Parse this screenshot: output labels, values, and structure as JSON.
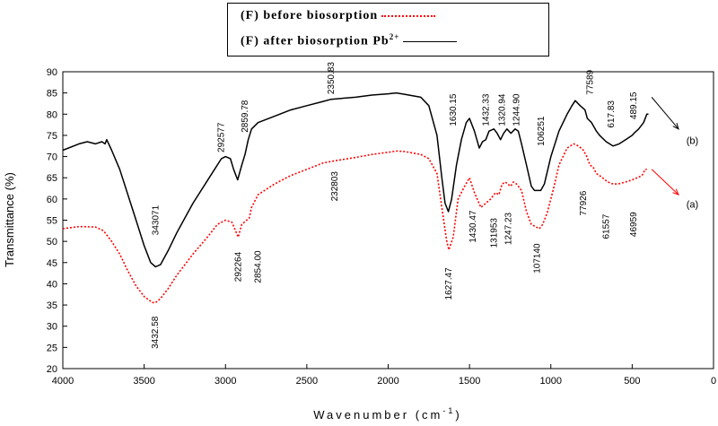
{
  "chart_data": {
    "type": "line",
    "xlabel": "Wavenumber (cm",
    "xlabel_sup": "-1",
    "xlabel_close": ")",
    "ylabel": "Transmittance (%)",
    "xlim": [
      4000,
      0
    ],
    "ylim": [
      20,
      90
    ],
    "x_ticks": [
      "4000",
      "3500",
      "3000",
      "2500",
      "2000",
      "1500",
      "1000",
      "500",
      "0"
    ],
    "y_ticks": [
      "20",
      "25",
      "30",
      "35",
      "40",
      "45",
      "50",
      "55",
      "60",
      "65",
      "70",
      "75",
      "80",
      "85",
      "90"
    ],
    "legend": {
      "placement": "top",
      "entries": [
        {
          "label": "(F) before biosorption",
          "series": "a"
        },
        {
          "label": "(F) after biosorption Pb",
          "sup": "2+",
          "series": "b"
        }
      ]
    },
    "series": [
      {
        "id": "a",
        "label": "(a)",
        "color": "#ff0000",
        "style": "dotted",
        "points": [
          [
            4000,
            53
          ],
          [
            3900,
            53.5
          ],
          [
            3800,
            53.4
          ],
          [
            3750,
            52.5
          ],
          [
            3700,
            50
          ],
          [
            3650,
            47
          ],
          [
            3600,
            43
          ],
          [
            3550,
            39.5
          ],
          [
            3500,
            37
          ],
          [
            3450,
            35.6
          ],
          [
            3432,
            35.5
          ],
          [
            3400,
            36.5
          ],
          [
            3350,
            39
          ],
          [
            3300,
            42
          ],
          [
            3200,
            47
          ],
          [
            3100,
            51.5
          ],
          [
            3050,
            54
          ],
          [
            3000,
            55
          ],
          [
            2960,
            54.5
          ],
          [
            2922,
            51
          ],
          [
            2900,
            54
          ],
          [
            2870,
            55
          ],
          [
            2854,
            55.5
          ],
          [
            2840,
            58
          ],
          [
            2800,
            61
          ],
          [
            2700,
            63.5
          ],
          [
            2600,
            65.5
          ],
          [
            2500,
            67
          ],
          [
            2400,
            68.5
          ],
          [
            2328,
            69
          ],
          [
            2200,
            69.8
          ],
          [
            2100,
            70.5
          ],
          [
            2000,
            71
          ],
          [
            1950,
            71.3
          ],
          [
            1900,
            71.2
          ],
          [
            1800,
            70.5
          ],
          [
            1750,
            69.5
          ],
          [
            1700,
            66
          ],
          [
            1670,
            58
          ],
          [
            1640,
            50
          ],
          [
            1627,
            48
          ],
          [
            1600,
            51
          ],
          [
            1570,
            60
          ],
          [
            1530,
            63
          ],
          [
            1500,
            65
          ],
          [
            1470,
            61.5
          ],
          [
            1430,
            58
          ],
          [
            1400,
            59
          ],
          [
            1370,
            60
          ],
          [
            1340,
            61.5
          ],
          [
            1319,
            61
          ],
          [
            1300,
            63.5
          ],
          [
            1280,
            64
          ],
          [
            1247,
            63
          ],
          [
            1230,
            64
          ],
          [
            1210,
            63.5
          ],
          [
            1180,
            62
          ],
          [
            1150,
            57
          ],
          [
            1120,
            54
          ],
          [
            1071,
            53
          ],
          [
            1050,
            54
          ],
          [
            1020,
            57
          ],
          [
            980,
            63
          ],
          [
            950,
            68
          ],
          [
            900,
            72
          ],
          [
            860,
            73
          ],
          [
            830,
            72.5
          ],
          [
            800,
            71.5
          ],
          [
            779,
            70
          ],
          [
            760,
            68
          ],
          [
            740,
            67.5
          ],
          [
            720,
            66
          ],
          [
            700,
            65.5
          ],
          [
            650,
            64
          ],
          [
            615,
            63.5
          ],
          [
            580,
            63.6
          ],
          [
            540,
            64
          ],
          [
            500,
            64.5
          ],
          [
            469,
            65
          ],
          [
            440,
            65.5
          ],
          [
            420,
            67
          ],
          [
            410,
            67
          ]
        ]
      },
      {
        "id": "b",
        "label": "(b)",
        "color": "#000000",
        "style": "solid",
        "points": [
          [
            4000,
            71.5
          ],
          [
            3900,
            73
          ],
          [
            3850,
            73.5
          ],
          [
            3800,
            73
          ],
          [
            3760,
            73.5
          ],
          [
            3740,
            73
          ],
          [
            3730,
            74
          ],
          [
            3700,
            71.5
          ],
          [
            3650,
            67
          ],
          [
            3600,
            61
          ],
          [
            3550,
            55
          ],
          [
            3500,
            49
          ],
          [
            3460,
            45
          ],
          [
            3430,
            44
          ],
          [
            3400,
            44.5
          ],
          [
            3350,
            48
          ],
          [
            3300,
            52
          ],
          [
            3200,
            59
          ],
          [
            3100,
            65
          ],
          [
            3025,
            69.5
          ],
          [
            3000,
            70
          ],
          [
            2970,
            69.5
          ],
          [
            2950,
            67
          ],
          [
            2925,
            64.5
          ],
          [
            2900,
            68
          ],
          [
            2880,
            70.5
          ],
          [
            2860,
            74
          ],
          [
            2840,
            76.5
          ],
          [
            2800,
            78
          ],
          [
            2700,
            79.5
          ],
          [
            2600,
            81
          ],
          [
            2500,
            82
          ],
          [
            2400,
            83
          ],
          [
            2351,
            83.5
          ],
          [
            2200,
            84
          ],
          [
            2100,
            84.5
          ],
          [
            2000,
            84.8
          ],
          [
            1950,
            85
          ],
          [
            1900,
            84.7
          ],
          [
            1800,
            84
          ],
          [
            1750,
            82
          ],
          [
            1700,
            75
          ],
          [
            1670,
            65
          ],
          [
            1650,
            59
          ],
          [
            1630,
            57
          ],
          [
            1610,
            60
          ],
          [
            1580,
            68
          ],
          [
            1550,
            74
          ],
          [
            1520,
            78
          ],
          [
            1500,
            79
          ],
          [
            1470,
            76
          ],
          [
            1440,
            72
          ],
          [
            1420,
            73.5
          ],
          [
            1400,
            74
          ],
          [
            1380,
            76
          ],
          [
            1350,
            76.5
          ],
          [
            1330,
            75.5
          ],
          [
            1309,
            74
          ],
          [
            1290,
            75.5
          ],
          [
            1270,
            76.5
          ],
          [
            1245,
            75.5
          ],
          [
            1220,
            76.5
          ],
          [
            1200,
            76
          ],
          [
            1180,
            73
          ],
          [
            1150,
            68
          ],
          [
            1120,
            63
          ],
          [
            1100,
            62
          ],
          [
            1062,
            62
          ],
          [
            1040,
            63.5
          ],
          [
            1000,
            70
          ],
          [
            950,
            76
          ],
          [
            900,
            80
          ],
          [
            870,
            82
          ],
          [
            850,
            83.2
          ],
          [
            820,
            82
          ],
          [
            790,
            81
          ],
          [
            776,
            79
          ],
          [
            750,
            78
          ],
          [
            720,
            76
          ],
          [
            700,
            75
          ],
          [
            660,
            73.5
          ],
          [
            618,
            72.5
          ],
          [
            580,
            73
          ],
          [
            540,
            74
          ],
          [
            500,
            75
          ],
          [
            489,
            75.5
          ],
          [
            460,
            76.5
          ],
          [
            430,
            78
          ],
          [
            410,
            80
          ],
          [
            400,
            80
          ]
        ]
      }
    ],
    "annotations": [
      {
        "text": "343071",
        "x": 3430,
        "y": 55,
        "series": "b"
      },
      {
        "text": "292577",
        "x": 3025,
        "y": 74.5,
        "series": "b"
      },
      {
        "text": "2859.78",
        "x": 2880,
        "y": 79.5,
        "series": "b"
      },
      {
        "text": "2350.83",
        "x": 2351,
        "y": 88.5,
        "series": "b"
      },
      {
        "text": "1630.15",
        "x": 1600,
        "y": 81,
        "series": "b"
      },
      {
        "text": "1432.33",
        "x": 1400,
        "y": 81,
        "series": "b"
      },
      {
        "text": "1320.94",
        "x": 1300,
        "y": 81,
        "series": "b"
      },
      {
        "text": "1244.90",
        "x": 1210,
        "y": 81,
        "series": "b"
      },
      {
        "text": "106251",
        "x": 1060,
        "y": 76,
        "series": "b"
      },
      {
        "text": "77589",
        "x": 760,
        "y": 87.5,
        "series": "b"
      },
      {
        "text": "617.83",
        "x": 630,
        "y": 80,
        "series": "b"
      },
      {
        "text": "489.15",
        "x": 490,
        "y": 82,
        "series": "b"
      },
      {
        "text": "3432.58",
        "x": 3432,
        "y": 28.5,
        "series": "a"
      },
      {
        "text": "292264",
        "x": 2922,
        "y": 44,
        "series": "a"
      },
      {
        "text": "2854.00",
        "x": 2800,
        "y": 44,
        "series": "a"
      },
      {
        "text": "232803",
        "x": 2328,
        "y": 63,
        "series": "a"
      },
      {
        "text": "1627.47",
        "x": 1627,
        "y": 40,
        "series": "a"
      },
      {
        "text": "1430.47",
        "x": 1480,
        "y": 53.5,
        "series": "a"
      },
      {
        "text": "131953",
        "x": 1350,
        "y": 52,
        "series": "a"
      },
      {
        "text": "1247.23",
        "x": 1260,
        "y": 53,
        "series": "a"
      },
      {
        "text": "107140",
        "x": 1085,
        "y": 46,
        "series": "a"
      },
      {
        "text": "77926",
        "x": 800,
        "y": 59,
        "series": "a"
      },
      {
        "text": "61557",
        "x": 660,
        "y": 53.5,
        "series": "a"
      },
      {
        "text": "46959",
        "x": 490,
        "y": 54,
        "series": "a"
      }
    ],
    "grid": false
  }
}
